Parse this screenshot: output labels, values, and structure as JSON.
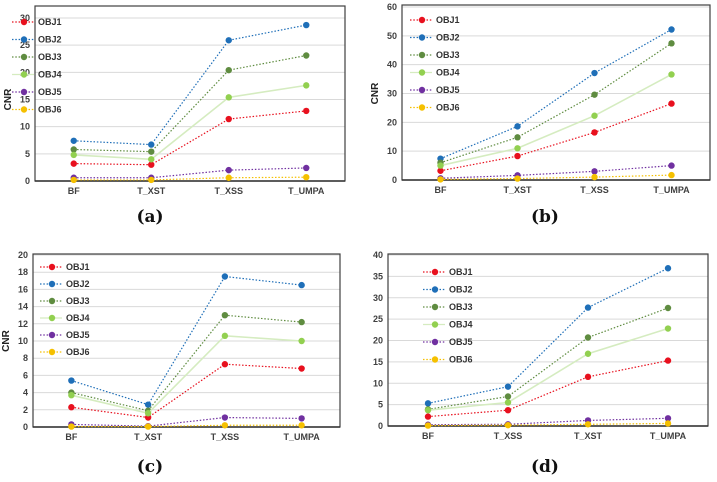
{
  "colors": {
    "OBJ1": "#e8101e",
    "OBJ2": "#1f6fb8",
    "OBJ3": "#5f8c40",
    "OBJ4": "#92d050",
    "OBJ5": "#7030a0",
    "OBJ6": "#f5c000"
  },
  "chart_data": [
    {
      "type": "line",
      "panel_label": "(a)",
      "ylabel": "CNR",
      "ylim": [
        0,
        30
      ],
      "ytick_step": 5,
      "categories": [
        "BF",
        "T_XST",
        "T_XSS",
        "T_UMPA"
      ],
      "grid": true,
      "legend": "top-left",
      "series": [
        {
          "name": "OBJ1",
          "values": [
            3.2,
            3.0,
            11.4,
            12.9
          ]
        },
        {
          "name": "OBJ2",
          "values": [
            7.4,
            6.7,
            25.9,
            28.7
          ]
        },
        {
          "name": "OBJ3",
          "values": [
            5.8,
            5.4,
            20.4,
            23.1
          ]
        },
        {
          "name": "OBJ4",
          "values": [
            4.8,
            4.0,
            15.4,
            17.6
          ]
        },
        {
          "name": "OBJ5",
          "values": [
            0.6,
            0.6,
            2.0,
            2.4
          ]
        },
        {
          "name": "OBJ6",
          "values": [
            0.2,
            0.2,
            0.6,
            0.7
          ]
        }
      ]
    },
    {
      "type": "line",
      "panel_label": "(b)",
      "ylabel": "CNR",
      "ylim": [
        0,
        60
      ],
      "ytick_step": 10,
      "categories": [
        "BF",
        "T_XST",
        "T_XSS",
        "T_UMPA"
      ],
      "grid": true,
      "legend": "top-left",
      "series": [
        {
          "name": "OBJ1",
          "values": [
            3.2,
            8.3,
            16.5,
            26.5
          ]
        },
        {
          "name": "OBJ2",
          "values": [
            7.4,
            18.6,
            37.1,
            52.2
          ]
        },
        {
          "name": "OBJ3",
          "values": [
            6.0,
            14.8,
            29.6,
            47.4
          ]
        },
        {
          "name": "OBJ4",
          "values": [
            5.0,
            11.0,
            22.3,
            36.6
          ]
        },
        {
          "name": "OBJ5",
          "values": [
            0.6,
            1.6,
            3.0,
            5.0
          ]
        },
        {
          "name": "OBJ6",
          "values": [
            0.2,
            0.5,
            1.0,
            1.7
          ]
        }
      ]
    },
    {
      "type": "line",
      "panel_label": "(c)",
      "ylabel": "CNR",
      "ylim": [
        0,
        20
      ],
      "ytick_step": 2,
      "categories": [
        "BF",
        "T_XST",
        "T_XSS",
        "T_UMPA"
      ],
      "grid": true,
      "legend": "top-left",
      "series": [
        {
          "name": "OBJ1",
          "values": [
            2.3,
            1.1,
            7.3,
            6.8
          ]
        },
        {
          "name": "OBJ2",
          "values": [
            5.4,
            2.6,
            17.5,
            16.5
          ]
        },
        {
          "name": "OBJ3",
          "values": [
            4.0,
            1.9,
            13.0,
            12.2
          ]
        },
        {
          "name": "OBJ4",
          "values": [
            3.7,
            1.6,
            10.6,
            10.0
          ]
        },
        {
          "name": "OBJ5",
          "values": [
            0.3,
            0.1,
            1.1,
            1.0
          ]
        },
        {
          "name": "OBJ6",
          "values": [
            0.05,
            0.05,
            0.2,
            0.2
          ]
        }
      ]
    },
    {
      "type": "line",
      "panel_label": "(d)",
      "ylabel": "",
      "ylim": [
        0,
        40
      ],
      "ytick_step": 5,
      "categories": [
        "BF",
        "T_XSS",
        "T_XST",
        "T_UMPA"
      ],
      "grid": true,
      "legend": "top-left",
      "series": [
        {
          "name": "OBJ1",
          "values": [
            2.2,
            3.7,
            11.5,
            15.3
          ]
        },
        {
          "name": "OBJ2",
          "values": [
            5.3,
            9.2,
            27.7,
            36.9
          ]
        },
        {
          "name": "OBJ3",
          "values": [
            3.9,
            6.9,
            20.7,
            27.6
          ]
        },
        {
          "name": "OBJ4",
          "values": [
            3.7,
            5.5,
            16.9,
            22.8
          ]
        },
        {
          "name": "OBJ5",
          "values": [
            0.3,
            0.4,
            1.3,
            1.8
          ]
        },
        {
          "name": "OBJ6",
          "values": [
            0.1,
            0.2,
            0.4,
            0.6
          ]
        }
      ]
    }
  ]
}
